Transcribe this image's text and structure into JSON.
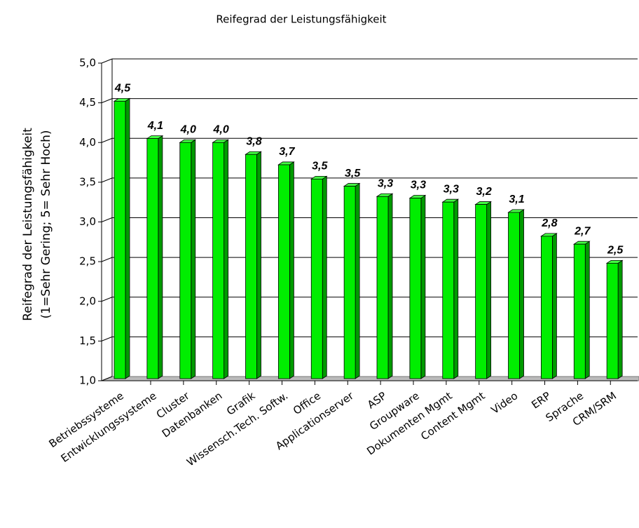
{
  "chart_data": {
    "type": "bar3d",
    "title": "Reifegrad der Leistungsfähigkeit",
    "ylabel": [
      "Reifegrad der Leistungsfähigkeit",
      "(1=Sehr Gering; 5= Sehr Hoch)"
    ],
    "categories": [
      "Betriebssysteme",
      "Entwicklungssysteme",
      "Cluster",
      "Datenbanken",
      "Grafik",
      "Wissensch.Tech. Softw.",
      "Office",
      "Applicationserver",
      "ASP",
      "Groupware",
      "Dokumenten Mgmt",
      "Content Mgmt",
      "Video",
      "ERP",
      "Sprache",
      "CRM/SRM"
    ],
    "values": [
      4.52,
      4.05,
      4.0,
      4.0,
      3.85,
      3.72,
      3.54,
      3.45,
      3.32,
      3.3,
      3.25,
      3.22,
      3.12,
      2.82,
      2.72,
      2.48
    ],
    "value_labels": [
      "4,5",
      "4,1",
      "4,0",
      "4,0",
      "3,8",
      "3,7",
      "3,5",
      "3,5",
      "3,3",
      "3,3",
      "3,3",
      "3,2",
      "3,1",
      "2,8",
      "2,7",
      "2,5"
    ],
    "color": "#00ee00",
    "ylim": [
      1,
      5
    ],
    "yticks": [
      {
        "value": 1,
        "label": "1,0"
      },
      {
        "value": 1.5,
        "label": "1,5"
      },
      {
        "value": 2,
        "label": "2,0"
      },
      {
        "value": 2.5,
        "label": "2,5"
      },
      {
        "value": 3,
        "label": "3,0"
      },
      {
        "value": 3.5,
        "label": "3,5"
      },
      {
        "value": 4,
        "label": "4,0"
      },
      {
        "value": 4.5,
        "label": "4,5"
      },
      {
        "value": 5,
        "label": "5,0"
      }
    ],
    "grid": true
  }
}
